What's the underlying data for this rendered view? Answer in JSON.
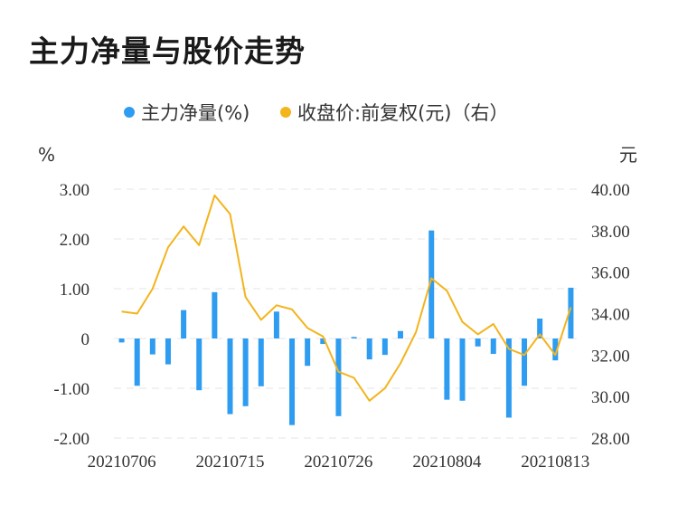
{
  "title": "主力净量与股价走势",
  "chart_data": {
    "type": "bar+line",
    "legend": {
      "placement": "top-center",
      "items": [
        {
          "label": "主力净量(%)",
          "color": "#2e9cf0",
          "marker": "dot"
        },
        {
          "label": "收盘价:前复权(元)（右）",
          "color": "#f3b41c",
          "marker": "dot"
        }
      ]
    },
    "left_axis": {
      "unit": "%",
      "ticks": [
        "3.00",
        "2.00",
        "1.00",
        "0",
        "-1.00",
        "-2.00"
      ],
      "ylim": [
        -2,
        3
      ]
    },
    "right_axis": {
      "unit": "元",
      "ticks": [
        "40.00",
        "38.00",
        "36.00",
        "34.00",
        "32.00",
        "30.00",
        "28.00"
      ],
      "ylim": [
        28,
        40
      ]
    },
    "x_ticks": [
      "20210706",
      "20210715",
      "20210726",
      "20210804",
      "20210813"
    ],
    "grid": true,
    "series": [
      {
        "name": "主力净量(%)",
        "type": "bar",
        "color": "#2e9cf0",
        "values": [
          -0.08,
          -0.95,
          -0.32,
          -0.52,
          0.57,
          -1.04,
          0.93,
          -1.52,
          -1.36,
          -0.96,
          0.54,
          -1.74,
          -0.55,
          -0.11,
          -1.56,
          0.03,
          -0.42,
          -0.33,
          0.15,
          0.0,
          2.17,
          -1.23,
          -1.25,
          -0.16,
          -0.31,
          -1.59,
          -0.95,
          0.4,
          -0.44,
          1.02
        ]
      },
      {
        "name": "收盘价:前复权(元)（右）",
        "type": "line",
        "axis": "right",
        "color": "#f3b41c",
        "values": [
          34.1,
          34.0,
          35.2,
          37.2,
          38.2,
          37.3,
          39.7,
          38.8,
          34.8,
          33.7,
          34.4,
          34.2,
          33.3,
          32.9,
          31.2,
          30.9,
          29.8,
          30.4,
          31.6,
          33.1,
          35.7,
          35.1,
          33.6,
          33.0,
          33.5,
          32.3,
          32.0,
          33.0,
          32.0,
          34.3
        ]
      }
    ]
  }
}
